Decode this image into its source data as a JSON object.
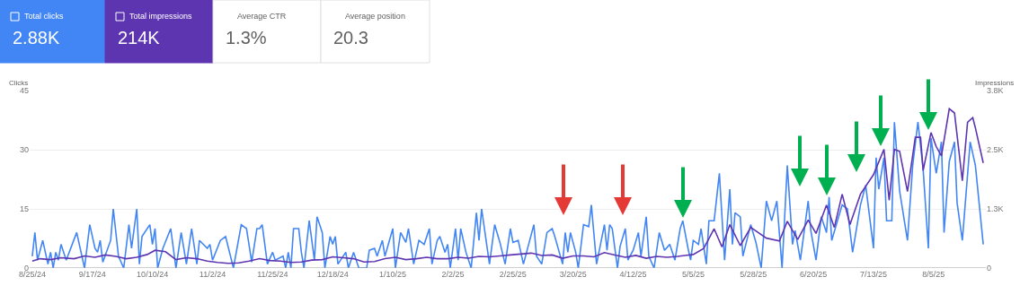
{
  "chart_data": {
    "type": "line",
    "ylabel": "Clicks",
    "y2label": "Impressions",
    "xlim": [
      "2024-08-24",
      "2025-08-25"
    ],
    "xticks": [
      {
        "value": "2024-08-25",
        "label": "8/25/24"
      },
      {
        "value": "2024-09-17",
        "label": "9/17/24"
      },
      {
        "value": "2024-10-10",
        "label": "10/10/24"
      },
      {
        "value": "2024-11-02",
        "label": "11/2/24"
      },
      {
        "value": "2024-11-25",
        "label": "11/25/24"
      },
      {
        "value": "2024-12-18",
        "label": "12/18/24"
      },
      {
        "value": "2025-01-10",
        "label": "1/10/25"
      },
      {
        "value": "2025-02-02",
        "label": "2/2/25"
      },
      {
        "value": "2025-02-25",
        "label": "2/25/25"
      },
      {
        "value": "2025-03-20",
        "label": "3/20/25"
      },
      {
        "value": "2025-04-12",
        "label": "4/12/25"
      },
      {
        "value": "2025-05-05",
        "label": "5/5/25"
      },
      {
        "value": "2025-05-28",
        "label": "5/28/25"
      },
      {
        "value": "2025-06-20",
        "label": "6/20/25"
      },
      {
        "value": "2025-07-13",
        "label": "7/13/25"
      },
      {
        "value": "2025-08-05",
        "label": "8/5/25"
      }
    ],
    "ylim": [
      0,
      45
    ],
    "yticks": [
      0,
      15,
      30,
      45
    ],
    "y2lim": [
      0,
      3800
    ],
    "y2ticks": [
      0,
      {
        "value": 1267,
        "label": "1.3K"
      },
      {
        "value": 2533,
        "label": "2.5K"
      },
      {
        "value": 3800,
        "label": "3.8K"
      }
    ],
    "grid": "y",
    "line_style": "solid",
    "legend": "top left",
    "series": [
      {
        "name": "Total clicks",
        "color": "#4285f4",
        "x": [
          "2024-08-25",
          "2024-08-26",
          "2024-08-27",
          "2024-08-29",
          "2024-08-31",
          "2024-09-01",
          "2024-09-02",
          "2024-09-03",
          "2024-09-04",
          "2024-09-05",
          "2024-09-07",
          "2024-09-11",
          "2024-09-14",
          "2024-09-16",
          "2024-09-18",
          "2024-09-19",
          "2024-09-20",
          "2024-09-21",
          "2024-09-24",
          "2024-09-25",
          "2024-09-27",
          "2024-09-29",
          "2024-10-01",
          "2024-10-02",
          "2024-10-04",
          "2024-10-05",
          "2024-10-06",
          "2024-10-09",
          "2024-10-10",
          "2024-10-11",
          "2024-10-12",
          "2024-10-14",
          "2024-10-17",
          "2024-10-19",
          "2024-10-21",
          "2024-10-23",
          "2024-10-25",
          "2024-10-27",
          "2024-10-28",
          "2024-10-31",
          "2024-11-01",
          "2024-11-02",
          "2024-11-05",
          "2024-11-07",
          "2024-11-10",
          "2024-11-13",
          "2024-11-15",
          "2024-11-17",
          "2024-11-19",
          "2024-11-20",
          "2024-11-21",
          "2024-11-23",
          "2024-11-25",
          "2024-11-26",
          "2024-11-29",
          "2024-11-30",
          "2024-12-01",
          "2024-12-02",
          "2024-12-03",
          "2024-12-05",
          "2024-12-06",
          "2024-12-07",
          "2024-12-09",
          "2024-12-11",
          "2024-12-12",
          "2024-12-14",
          "2024-12-15",
          "2024-12-17",
          "2024-12-18",
          "2024-12-19",
          "2024-12-20",
          "2024-12-23",
          "2024-12-24",
          "2024-12-26",
          "2024-12-28",
          "2024-12-31",
          "2025-01-01",
          "2025-01-03",
          "2025-01-04",
          "2025-01-06",
          "2025-01-07",
          "2025-01-10",
          "2025-01-11",
          "2025-01-13",
          "2025-01-15",
          "2025-01-16",
          "2025-01-18",
          "2025-01-20",
          "2025-01-22",
          "2025-01-24",
          "2025-01-25",
          "2025-01-27",
          "2025-01-28",
          "2025-01-30",
          "2025-01-31",
          "2025-02-01",
          "2025-02-03",
          "2025-02-04",
          "2025-02-05",
          "2025-02-07",
          "2025-02-09",
          "2025-02-11",
          "2025-02-12",
          "2025-02-13",
          "2025-02-16",
          "2025-02-18",
          "2025-02-20",
          "2025-02-22",
          "2025-02-24",
          "2025-02-25",
          "2025-02-27",
          "2025-03-01",
          "2025-03-05",
          "2025-03-06",
          "2025-03-08",
          "2025-03-10",
          "2025-03-12",
          "2025-03-13",
          "2025-03-16",
          "2025-03-17",
          "2025-03-18",
          "2025-03-19",
          "2025-03-21",
          "2025-03-22",
          "2025-03-24",
          "2025-03-26",
          "2025-03-27",
          "2025-03-29",
          "2025-04-01",
          "2025-04-02",
          "2025-04-03",
          "2025-04-04",
          "2025-04-06",
          "2025-04-07",
          "2025-04-09",
          "2025-04-10",
          "2025-04-12",
          "2025-04-14",
          "2025-04-15",
          "2025-04-17",
          "2025-04-18",
          "2025-04-20",
          "2025-04-22",
          "2025-04-24",
          "2025-04-26",
          "2025-04-28",
          "2025-04-30",
          "2025-05-01",
          "2025-05-03",
          "2025-05-04",
          "2025-05-05",
          "2025-05-07",
          "2025-05-08",
          "2025-05-10",
          "2025-05-11",
          "2025-05-13",
          "2025-05-15",
          "2025-05-17",
          "2025-05-19",
          "2025-05-20",
          "2025-05-21",
          "2025-05-23",
          "2025-05-24",
          "2025-05-27",
          "2025-05-29",
          "2025-05-31",
          "2025-06-02",
          "2025-06-04",
          "2025-06-06",
          "2025-06-08",
          "2025-06-10",
          "2025-06-12",
          "2025-06-13",
          "2025-06-15",
          "2025-06-18",
          "2025-06-19",
          "2025-06-21",
          "2025-06-23",
          "2025-06-25",
          "2025-06-26",
          "2025-06-27",
          "2025-07-01",
          "2025-07-03",
          "2025-07-05",
          "2025-07-08",
          "2025-07-10",
          "2025-07-13",
          "2025-07-14",
          "2025-07-15",
          "2025-07-17",
          "2025-07-18",
          "2025-07-20",
          "2025-07-21",
          "2025-07-23",
          "2025-07-26",
          "2025-07-28",
          "2025-07-30",
          "2025-08-01",
          "2025-08-03",
          "2025-08-04",
          "2025-08-06",
          "2025-08-08",
          "2025-08-09",
          "2025-08-11",
          "2025-08-13",
          "2025-08-14",
          "2025-08-16",
          "2025-08-19",
          "2025-08-21",
          "2025-08-24"
        ],
        "values": [
          3,
          9,
          2,
          7,
          1,
          4,
          0,
          4,
          2,
          6,
          2,
          9,
          0,
          11,
          5,
          4,
          7,
          1.5,
          7,
          15,
          3,
          0,
          11,
          5,
          15,
          1,
          8,
          11,
          6,
          10,
          0,
          5,
          10,
          0,
          9,
          1,
          10,
          1,
          7,
          5,
          6,
          2,
          7,
          8,
          0,
          11,
          10,
          1.5,
          10,
          10,
          11,
          1,
          4,
          2,
          3,
          0,
          4,
          0,
          10,
          10,
          4,
          0,
          12,
          2,
          13,
          9,
          0,
          8,
          6,
          8,
          1,
          4,
          0,
          4,
          0,
          0,
          4.5,
          5,
          3,
          7,
          3,
          10,
          0,
          9,
          6.5,
          10,
          1,
          7,
          6,
          10,
          1,
          7,
          8,
          4,
          6,
          0,
          10,
          2,
          10,
          4,
          0,
          14,
          7,
          15,
          1,
          11,
          6.5,
          1,
          10,
          6.5,
          7,
          1,
          11,
          3,
          1,
          9,
          10,
          8,
          1,
          9,
          4,
          9,
          4,
          0,
          11,
          10.5,
          16,
          1,
          11,
          4.5,
          11,
          10,
          0,
          5.5,
          10,
          2,
          4.5,
          9,
          3,
          13,
          3,
          0,
          9,
          4.5,
          6,
          2,
          10,
          12,
          5,
          2,
          7,
          6,
          10,
          1,
          12,
          12,
          24,
          2,
          20,
          6,
          14,
          13,
          3,
          11,
          6.5,
          0,
          17,
          12,
          17,
          0,
          26,
          6,
          9.5,
          2,
          17,
          9.5,
          2,
          13,
          9,
          18,
          7,
          16,
          15,
          4,
          16,
          21,
          5,
          28,
          20,
          28,
          12,
          12,
          37,
          19.5,
          7,
          26,
          37,
          25,
          5,
          33,
          24,
          32,
          9,
          27,
          32,
          16.5,
          7,
          32,
          26,
          6
        ]
      },
      {
        "name": "Total impressions",
        "color": "#5e35b1",
        "axis": "y2",
        "x": [
          "2024-08-25",
          "2024-08-28",
          "2024-09-01",
          "2024-09-05",
          "2024-09-10",
          "2024-09-14",
          "2024-09-18",
          "2024-09-22",
          "2024-09-26",
          "2024-09-30",
          "2024-10-04",
          "2024-10-08",
          "2024-10-11",
          "2024-10-15",
          "2024-10-19",
          "2024-10-23",
          "2024-10-27",
          "2024-10-31",
          "2024-11-04",
          "2024-11-08",
          "2024-11-12",
          "2024-11-16",
          "2024-11-20",
          "2024-11-24",
          "2024-11-28",
          "2024-12-02",
          "2024-12-06",
          "2024-12-10",
          "2024-12-14",
          "2024-12-18",
          "2024-12-22",
          "2024-12-26",
          "2024-12-30",
          "2025-01-03",
          "2025-01-07",
          "2025-01-11",
          "2025-01-15",
          "2025-01-19",
          "2025-01-23",
          "2025-01-27",
          "2025-01-31",
          "2025-02-04",
          "2025-02-08",
          "2025-02-12",
          "2025-02-16",
          "2025-02-20",
          "2025-02-24",
          "2025-02-28",
          "2025-03-04",
          "2025-03-08",
          "2025-03-12",
          "2025-03-16",
          "2025-03-20",
          "2025-03-24",
          "2025-03-28",
          "2025-04-01",
          "2025-04-05",
          "2025-04-09",
          "2025-04-13",
          "2025-04-17",
          "2025-04-21",
          "2025-04-25",
          "2025-04-29",
          "2025-05-05",
          "2025-05-09",
          "2025-05-13",
          "2025-05-16",
          "2025-05-19",
          "2025-05-23",
          "2025-05-27",
          "2025-06-02",
          "2025-06-07",
          "2025-06-10",
          "2025-06-14",
          "2025-06-18",
          "2025-06-21",
          "2025-06-25",
          "2025-06-28",
          "2025-07-01",
          "2025-07-04",
          "2025-07-08",
          "2025-07-13",
          "2025-07-17",
          "2025-07-19",
          "2025-07-21",
          "2025-07-23",
          "2025-07-26",
          "2025-07-29",
          "2025-07-31",
          "2025-08-01",
          "2025-08-04",
          "2025-08-06",
          "2025-08-08",
          "2025-08-11",
          "2025-08-13",
          "2025-08-16",
          "2025-08-18",
          "2025-08-20",
          "2025-08-21",
          "2025-08-24"
        ],
        "values": [
          150,
          200,
          180,
          220,
          200,
          260,
          230,
          280,
          250,
          200,
          230,
          290,
          380,
          350,
          180,
          220,
          200,
          150,
          120,
          100,
          110,
          150,
          200,
          160,
          150,
          120,
          130,
          170,
          180,
          240,
          220,
          200,
          130,
          140,
          200,
          230,
          180,
          200,
          230,
          200,
          200,
          230,
          210,
          250,
          240,
          260,
          280,
          300,
          320,
          270,
          280,
          210,
          260,
          260,
          240,
          330,
          280,
          230,
          270,
          210,
          250,
          230,
          250,
          290,
          420,
          840,
          450,
          930,
          480,
          870,
          640,
          580,
          1000,
          610,
          1030,
          740,
          1350,
          870,
          1580,
          930,
          1580,
          2000,
          2540,
          1450,
          2540,
          2500,
          1640,
          2800,
          2800,
          2090,
          2900,
          2600,
          2400,
          3410,
          3320,
          1870,
          3120,
          3220,
          3000,
          2250
        ]
      }
    ],
    "annotations": [
      "2.88K",
      "214K",
      "Average CTR",
      "1.3%",
      "Average position",
      "20.3"
    ]
  }
}
